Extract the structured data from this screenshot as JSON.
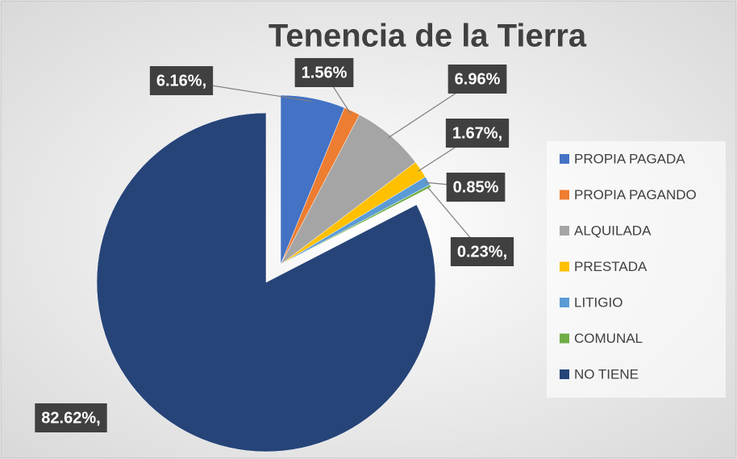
{
  "chart_data": {
    "type": "pie",
    "title": "Tenencia de la Tierra",
    "categories": [
      "PROPIA PAGADA",
      "PROPIA PAGANDO",
      "ALQUILADA",
      "PRESTADA",
      "LITIGIO",
      "COMUNAL",
      "NO TIENE"
    ],
    "values": [
      6.16,
      1.56,
      6.96,
      1.67,
      0.85,
      0.23,
      82.62
    ],
    "value_labels": [
      "6.16%,",
      "1.56%",
      "6.96%",
      "1.67%,",
      "0.85%",
      "0.23%,",
      "82.62%,"
    ],
    "colors": [
      "#4472c4",
      "#ed7d31",
      "#a5a5a5",
      "#ffc000",
      "#5b9bd5",
      "#70ad47",
      "#264478"
    ],
    "legend": "right"
  }
}
